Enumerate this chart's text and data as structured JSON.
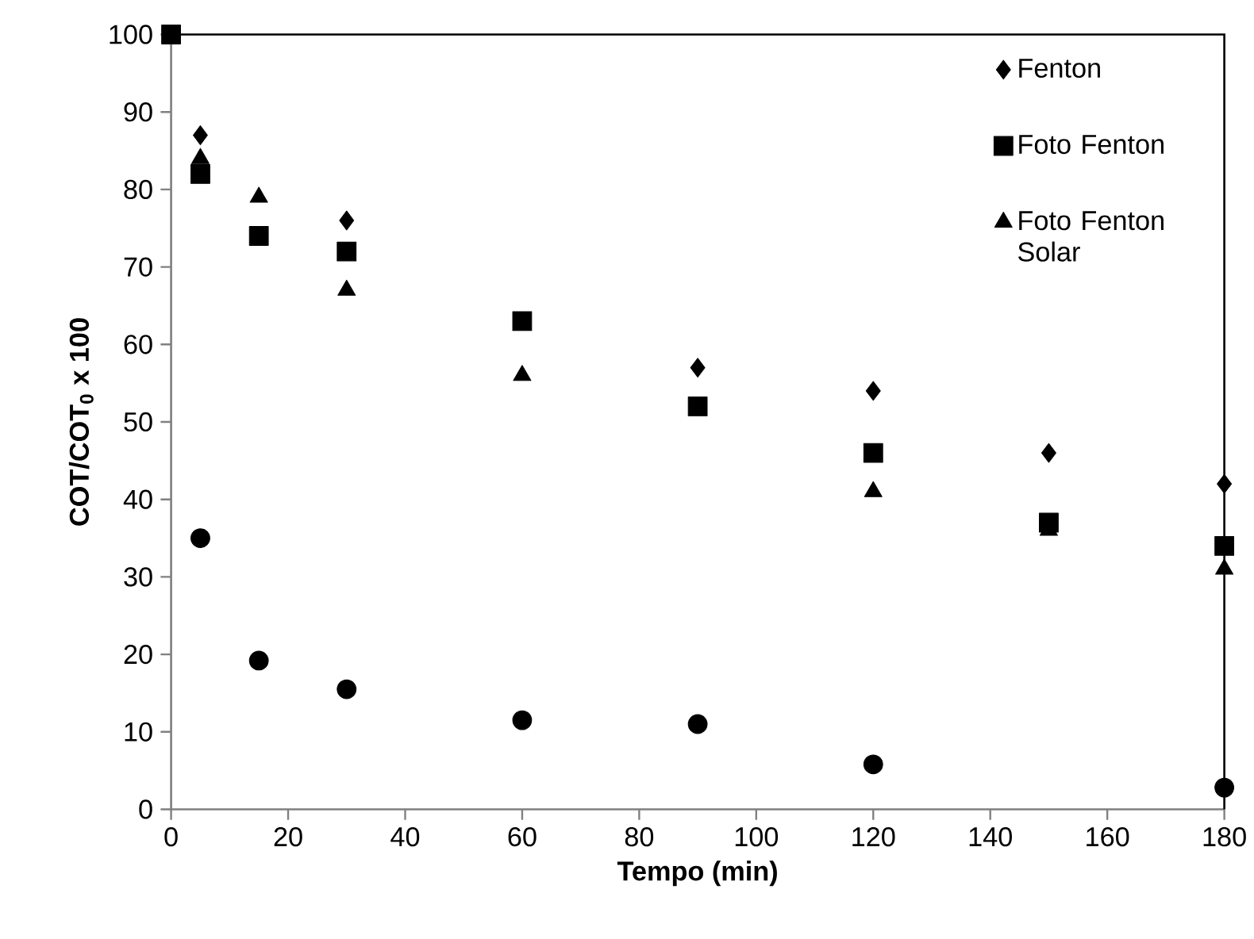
{
  "chart_data": {
    "type": "scatter",
    "xlabel": "Tempo (min)",
    "ylabel": "COT/COT$_{0}$ x 100",
    "xlim": [
      0,
      180
    ],
    "ylim": [
      0,
      100
    ],
    "xticks": [
      0,
      20,
      40,
      60,
      80,
      100,
      120,
      140,
      160,
      180
    ],
    "yticks": [
      0,
      10,
      20,
      30,
      40,
      50,
      60,
      70,
      80,
      90,
      100
    ],
    "legend": "top right",
    "series": [
      {
        "name": "Fenton",
        "color": "#000000",
        "marker": "diamond",
        "x": [
          5,
          30,
          90,
          120,
          150,
          180
        ],
        "values": [
          87,
          76,
          57,
          54,
          46,
          42
        ]
      },
      {
        "name": "Foto Fenton",
        "color": "#000000",
        "marker": "square",
        "x": [
          0,
          5,
          15,
          30,
          60,
          90,
          120,
          150,
          180
        ],
        "values": [
          100,
          82,
          74,
          72,
          63,
          52,
          46,
          37,
          34
        ]
      },
      {
        "name": "Foto Fenton Solar",
        "color": "#000000",
        "marker": "triangle",
        "x": [
          5,
          15,
          30,
          60,
          120,
          150,
          180
        ],
        "values": [
          84,
          79,
          67,
          56,
          41,
          36,
          31
        ]
      },
      {
        "color": "#000000",
        "marker": "circle",
        "x": [
          5,
          15,
          30,
          60,
          90,
          120,
          180
        ],
        "values": [
          35,
          19.2,
          15.5,
          11.5,
          11,
          5.8,
          2.8
        ]
      }
    ]
  }
}
